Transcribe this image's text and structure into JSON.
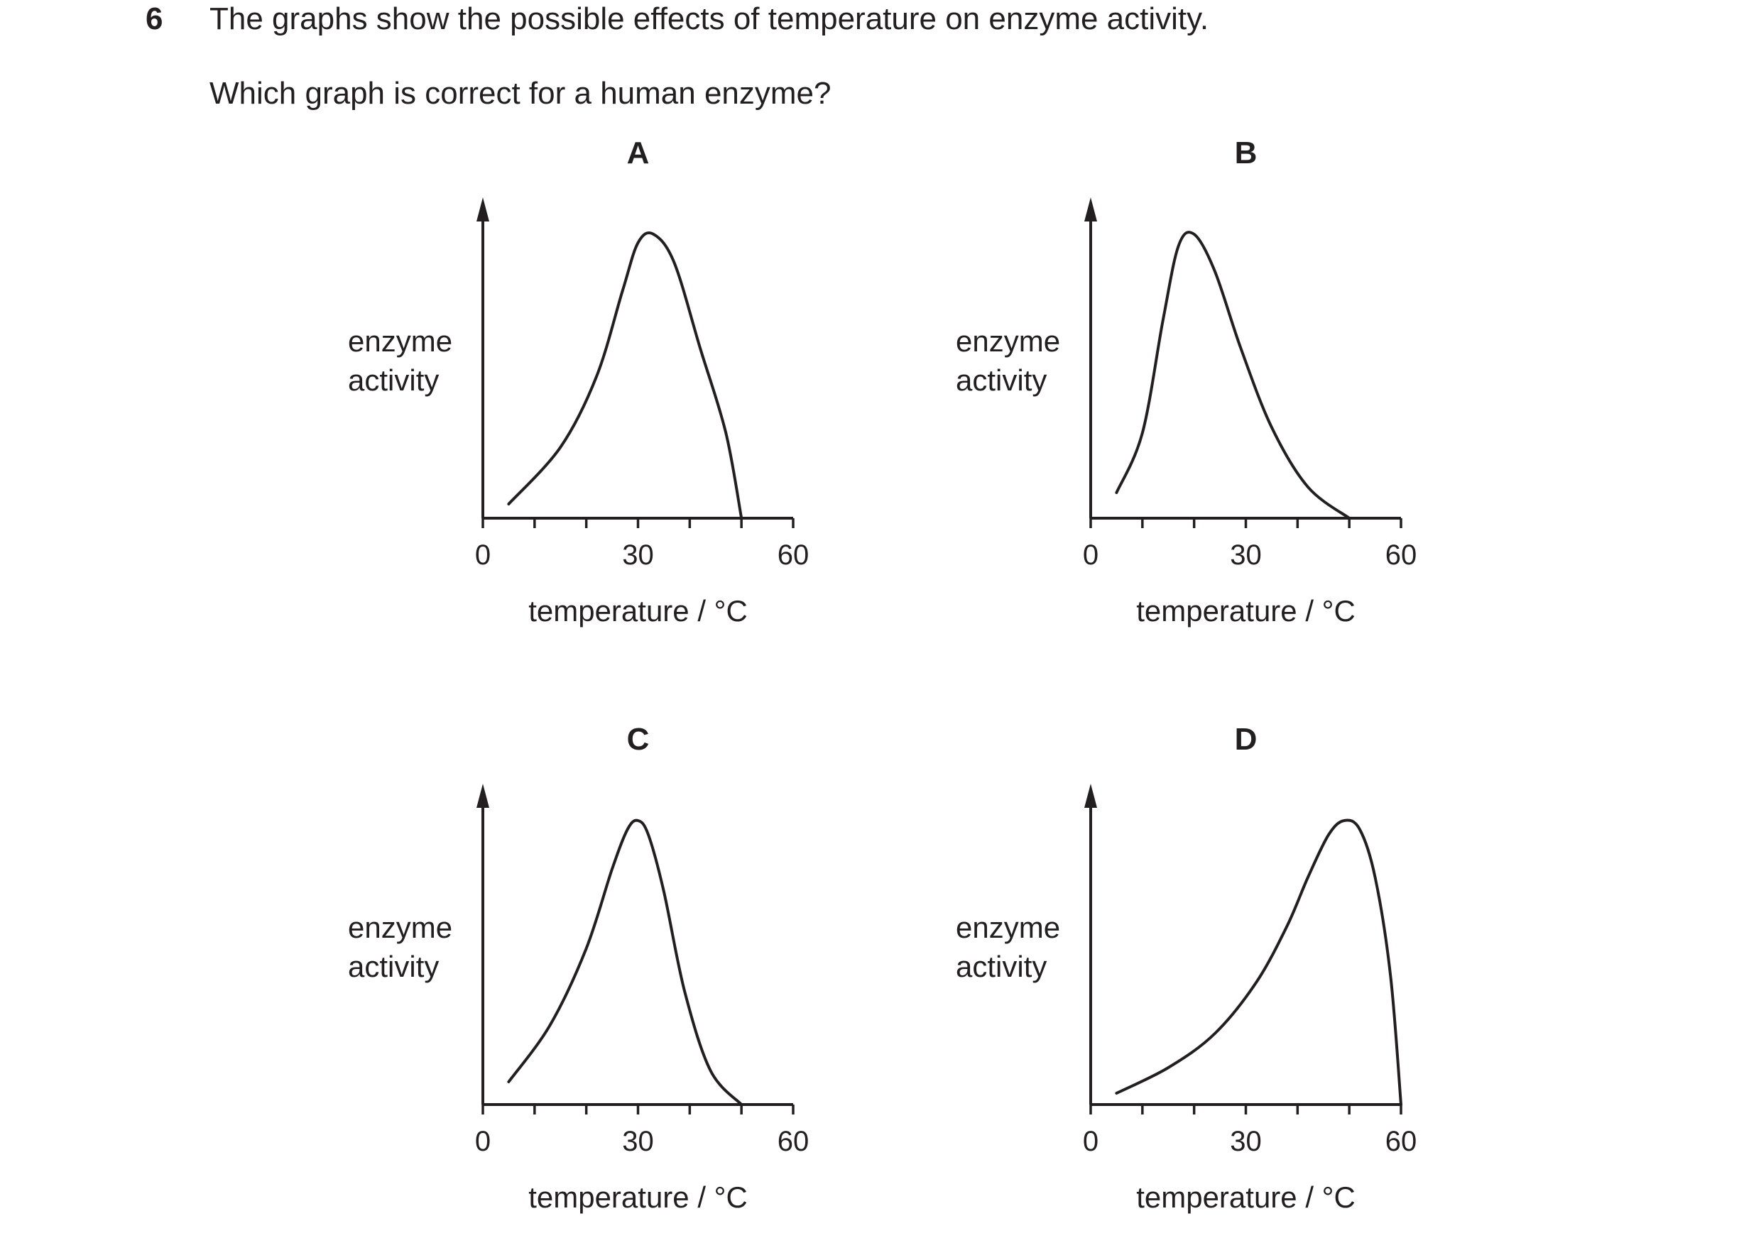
{
  "question": {
    "number": "6",
    "text": "The graphs show the possible effects of temperature on enzyme activity.",
    "prompt": "Which graph is correct for a human enzyme?"
  },
  "chart_data": [
    {
      "type": "line",
      "title": "A",
      "xlabel": "temperature / °C",
      "ylabel": [
        "enzyme",
        "activity"
      ],
      "xlim": [
        0,
        60
      ],
      "x_ticks": [
        0,
        10,
        20,
        30,
        40,
        50,
        60
      ],
      "x_tick_labels": [
        "0",
        "",
        "",
        "30",
        "",
        "",
        "60"
      ],
      "y_axis_numbered": false,
      "grid": false,
      "series": [
        {
          "x": [
            5,
            15,
            22,
            27,
            30,
            33,
            37,
            42,
            47,
            50
          ],
          "y": [
            0.05,
            0.25,
            0.5,
            0.8,
            0.97,
            1.0,
            0.9,
            0.6,
            0.3,
            0.0
          ]
        }
      ]
    },
    {
      "type": "line",
      "title": "B",
      "xlabel": "temperature / °C",
      "ylabel": [
        "enzyme",
        "activity"
      ],
      "xlim": [
        0,
        60
      ],
      "x_ticks": [
        0,
        10,
        20,
        30,
        40,
        50,
        60
      ],
      "x_tick_labels": [
        "0",
        "",
        "",
        "30",
        "",
        "",
        "60"
      ],
      "y_axis_numbered": false,
      "grid": false,
      "series": [
        {
          "x": [
            5,
            10,
            14,
            17,
            20,
            24,
            29,
            35,
            42,
            50
          ],
          "y": [
            0.09,
            0.3,
            0.7,
            0.96,
            1.0,
            0.87,
            0.6,
            0.32,
            0.11,
            0.0
          ]
        }
      ]
    },
    {
      "type": "line",
      "title": "C",
      "xlabel": "temperature / °C",
      "ylabel": [
        "enzyme",
        "activity"
      ],
      "xlim": [
        0,
        60
      ],
      "x_ticks": [
        0,
        10,
        20,
        30,
        40,
        50,
        60
      ],
      "x_tick_labels": [
        "0",
        "",
        "",
        "30",
        "",
        "",
        "60"
      ],
      "y_axis_numbered": false,
      "grid": false,
      "series": [
        {
          "x": [
            5,
            13,
            20,
            25,
            28,
            30,
            32,
            35,
            39,
            44,
            50
          ],
          "y": [
            0.08,
            0.28,
            0.55,
            0.83,
            0.97,
            1.0,
            0.95,
            0.75,
            0.4,
            0.12,
            0.0
          ]
        }
      ]
    },
    {
      "type": "line",
      "title": "D",
      "xlabel": "temperature / °C",
      "ylabel": [
        "enzyme",
        "activity"
      ],
      "xlim": [
        0,
        60
      ],
      "x_ticks": [
        0,
        10,
        20,
        30,
        40,
        50,
        60
      ],
      "x_tick_labels": [
        "0",
        "",
        "",
        "30",
        "",
        "",
        "60"
      ],
      "y_axis_numbered": false,
      "grid": false,
      "series": [
        {
          "x": [
            5,
            15,
            24,
            32,
            38,
            42,
            46,
            49,
            52,
            55,
            58,
            60
          ],
          "y": [
            0.04,
            0.13,
            0.25,
            0.43,
            0.63,
            0.8,
            0.95,
            1.0,
            0.97,
            0.8,
            0.45,
            0.0
          ]
        }
      ]
    }
  ]
}
